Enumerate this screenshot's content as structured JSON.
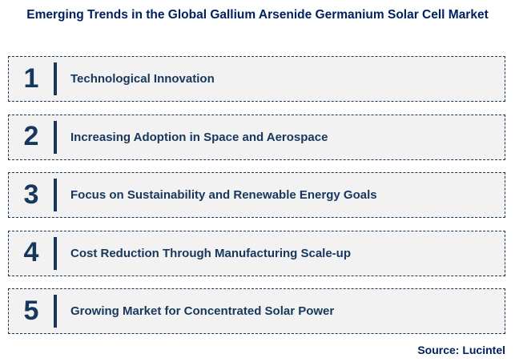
{
  "title": "Emerging Trends in the Global Gallium Arsenide Germanium Solar Cell Market",
  "items": [
    {
      "number": "1",
      "label": "Technological Innovation"
    },
    {
      "number": "2",
      "label": "Increasing Adoption in Space and Aerospace"
    },
    {
      "number": "3",
      "label": "Focus on Sustainability and Renewable Energy Goals"
    },
    {
      "number": "4",
      "label": "Cost Reduction Through Manufacturing Scale-up"
    },
    {
      "number": "5",
      "label": "Growing Market for Concentrated Solar Power"
    }
  ],
  "source": "Source: Lucintel",
  "colors": {
    "title_text": "#002060",
    "item_text": "#17375D",
    "box_background": "#F2F2F2",
    "box_border": "#17375D",
    "divider_bar": "#17375D",
    "page_background": "#FFFFFF"
  }
}
